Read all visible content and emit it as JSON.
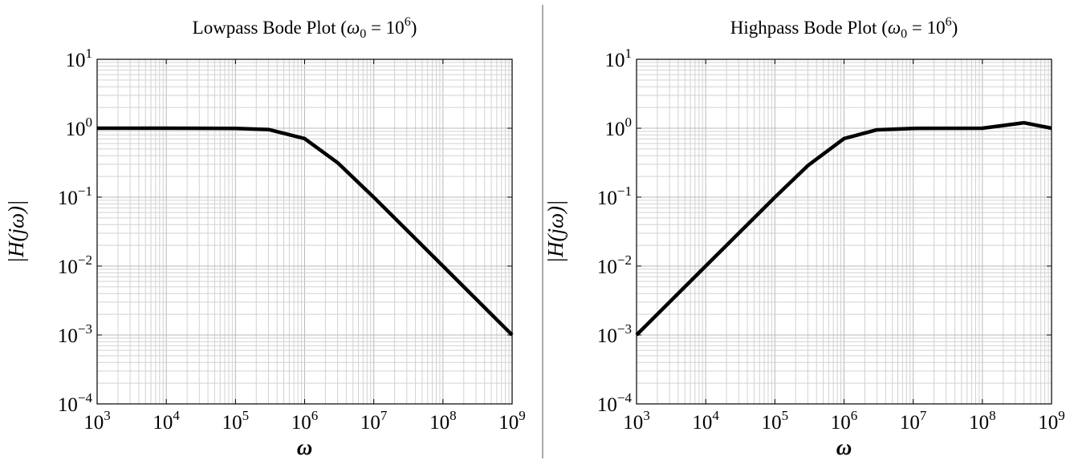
{
  "divider_color": "#555555",
  "chart_data": [
    {
      "type": "line",
      "title": "Lowpass Bode Plot (ω₀ = 10⁶)",
      "title_parts": {
        "prefix": "Lowpass Bode Plot (",
        "symbol": "ω",
        "sub": "0",
        "eq": " = 10",
        "sup": "6",
        "suffix": ")"
      },
      "xlabel": "ω",
      "ylabel": "|H(jω)|",
      "xscale": "log",
      "yscale": "log",
      "xlim": [
        1000,
        1000000000
      ],
      "ylim": [
        0.0001,
        10
      ],
      "grid": true,
      "x_ticks": [
        {
          "base": "10",
          "exp": "3"
        },
        {
          "base": "10",
          "exp": "4"
        },
        {
          "base": "10",
          "exp": "5"
        },
        {
          "base": "10",
          "exp": "6"
        },
        {
          "base": "10",
          "exp": "7"
        },
        {
          "base": "10",
          "exp": "8"
        },
        {
          "base": "10",
          "exp": "9"
        }
      ],
      "y_ticks": [
        {
          "base": "10",
          "exp": "−4"
        },
        {
          "base": "10",
          "exp": "−3"
        },
        {
          "base": "10",
          "exp": "−2"
        },
        {
          "base": "10",
          "exp": "−1"
        },
        {
          "base": "10",
          "exp": "0"
        },
        {
          "base": "10",
          "exp": "1"
        }
      ],
      "series": [
        {
          "color": "#000000",
          "x": [
            1000,
            10000,
            100000,
            300000,
            1000000,
            3000000,
            10000000,
            100000000,
            1000000000
          ],
          "y": [
            1.0,
            1.0,
            0.995,
            0.958,
            0.707,
            0.316,
            0.0995,
            0.01,
            0.001
          ]
        }
      ]
    },
    {
      "type": "line",
      "title": "Highpass Bode Plot (ω₀ = 10⁶)",
      "title_parts": {
        "prefix": "Highpass Bode Plot (",
        "symbol": "ω",
        "sub": "0",
        "eq": " = 10",
        "sup": "6",
        "suffix": ")"
      },
      "xlabel": "ω",
      "ylabel": "|H(jω)|",
      "xscale": "log",
      "yscale": "log",
      "xlim": [
        1000,
        1000000000
      ],
      "ylim": [
        0.0001,
        10
      ],
      "grid": true,
      "x_ticks": [
        {
          "base": "10",
          "exp": "3"
        },
        {
          "base": "10",
          "exp": "4"
        },
        {
          "base": "10",
          "exp": "5"
        },
        {
          "base": "10",
          "exp": "6"
        },
        {
          "base": "10",
          "exp": "7"
        },
        {
          "base": "10",
          "exp": "8"
        },
        {
          "base": "10",
          "exp": "9"
        }
      ],
      "y_ticks": [
        {
          "base": "10",
          "exp": "−4"
        },
        {
          "base": "10",
          "exp": "−3"
        },
        {
          "base": "10",
          "exp": "−2"
        },
        {
          "base": "10",
          "exp": "−1"
        },
        {
          "base": "10",
          "exp": "0"
        },
        {
          "base": "10",
          "exp": "1"
        }
      ],
      "series": [
        {
          "color": "#000000",
          "x": [
            1000,
            10000,
            100000,
            300000,
            1000000,
            3000000,
            10000000,
            100000000,
            400000000,
            1000000000
          ],
          "y": [
            0.001,
            0.01,
            0.0995,
            0.287,
            0.707,
            0.949,
            0.995,
            1.0,
            1.2,
            1.0
          ]
        }
      ]
    }
  ]
}
